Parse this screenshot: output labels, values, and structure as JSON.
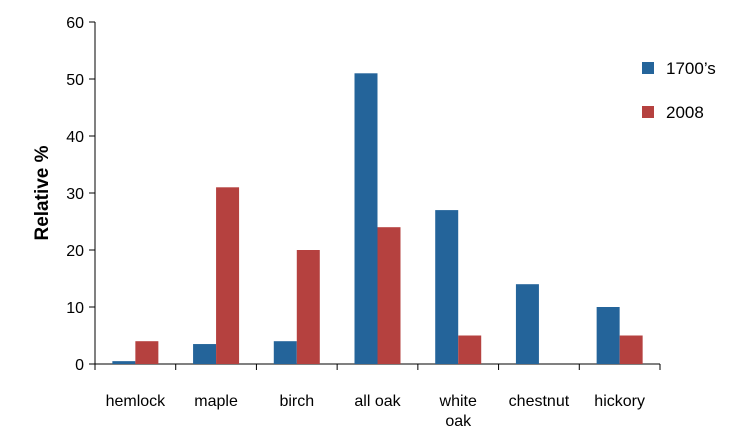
{
  "chart_data": {
    "type": "bar",
    "ylabel": "Relative %",
    "xlabel": "",
    "ylim": [
      0,
      60
    ],
    "yticks": [
      0,
      10,
      20,
      30,
      40,
      50,
      60
    ],
    "categories": [
      "hemlock",
      "maple",
      "birch",
      "all oak",
      "white oak",
      "chestnut",
      "hickory"
    ],
    "category_lines": [
      [
        "hemlock"
      ],
      [
        "maple"
      ],
      [
        "birch"
      ],
      [
        "all oak"
      ],
      [
        "white",
        "oak"
      ],
      [
        "chestnut"
      ],
      [
        "hickory"
      ]
    ],
    "series": [
      {
        "name": "1700’s",
        "color": "#24649a",
        "values": [
          0.5,
          3.5,
          4,
          51,
          27,
          14,
          10
        ]
      },
      {
        "name": "2008",
        "color": "#b5413f",
        "values": [
          4,
          31,
          20,
          24,
          5,
          0,
          5
        ]
      }
    ],
    "legend_position": "top-right",
    "grid": false
  }
}
